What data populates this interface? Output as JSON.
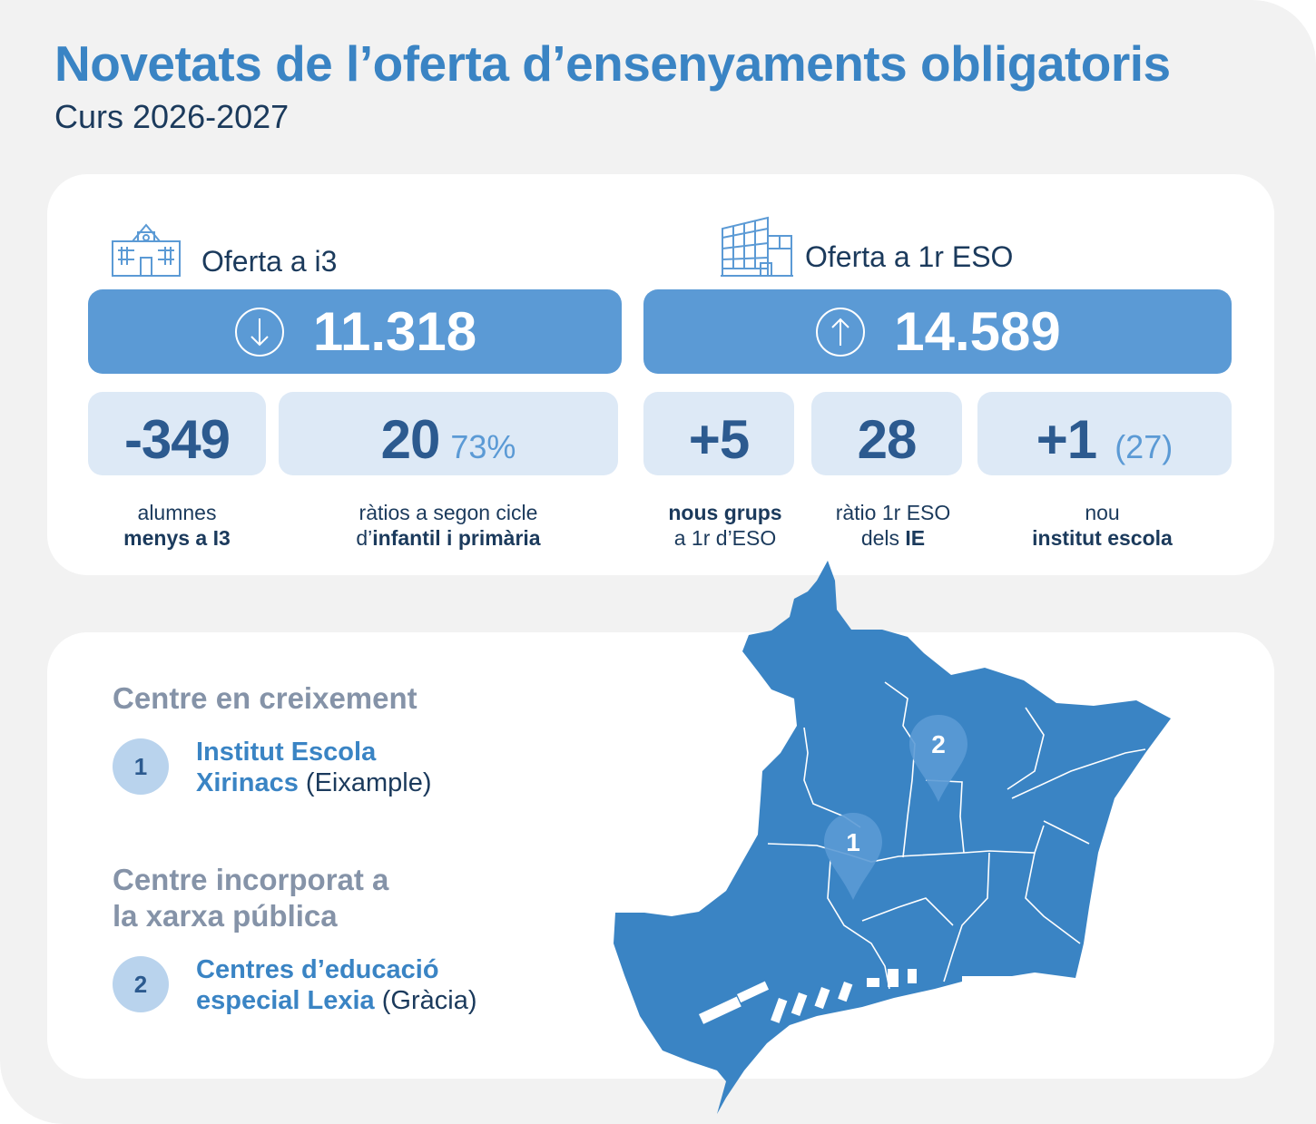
{
  "header": {
    "title": "Novetats de l’oferta d’ensenyaments obligatoris",
    "subtitle": "Curs 2026-2027"
  },
  "colors": {
    "accent": "#3a84c4",
    "box_blue": "#5b9ad5",
    "box_light": "#dde9f6",
    "map_blue": "#3a84c4",
    "heading_grey": "#8593a8"
  },
  "i3": {
    "label": "Oferta a i3",
    "icon": "school-building-icon",
    "total": "11.318",
    "trend_icon": "arrow-down-circle-icon",
    "stats": [
      {
        "value": "-349",
        "extra": "",
        "caption_line1": "alumnes",
        "caption_line2_prefix": "",
        "caption_line2_bold": "menys a I3"
      },
      {
        "value": "20",
        "extra": "73%",
        "caption_line1": "ràtios a segon cicle",
        "caption_line2_prefix": "d’",
        "caption_line2_bold": "infantil i primària"
      }
    ]
  },
  "eso": {
    "label": "Oferta a 1r ESO",
    "icon": "institute-building-icon",
    "total": "14.589",
    "trend_icon": "arrow-up-circle-icon",
    "stats": [
      {
        "value": "+5",
        "extra": "",
        "caption_line1_bold": "nous grups",
        "caption_line2": "a 1r d’ESO"
      },
      {
        "value": "28",
        "extra": "",
        "caption_line1": "ràtio 1r ESO",
        "caption_line2_prefix": "dels ",
        "caption_line2_bold": "IE"
      },
      {
        "value": "+1",
        "extra": "(27)",
        "caption_line1": "nou",
        "caption_line2_bold": "institut escola"
      }
    ]
  },
  "centers": {
    "growth_heading": "Centre en creixement",
    "growth_item": {
      "number": "1",
      "name_line1": "Institut Escola",
      "name_line2": "Xirinacs",
      "district": "(Eixample)"
    },
    "public_heading_line1": "Centre incorporat a",
    "public_heading_line2": "la xarxa pública",
    "public_item": {
      "number": "2",
      "name_line1": "Centres d’educació",
      "name_line2": "especial Lexia",
      "district": "(Gràcia)"
    }
  },
  "map": {
    "markers": [
      {
        "label": "1",
        "icon": "map-pin-icon"
      },
      {
        "label": "2",
        "icon": "map-pin-icon"
      }
    ]
  }
}
